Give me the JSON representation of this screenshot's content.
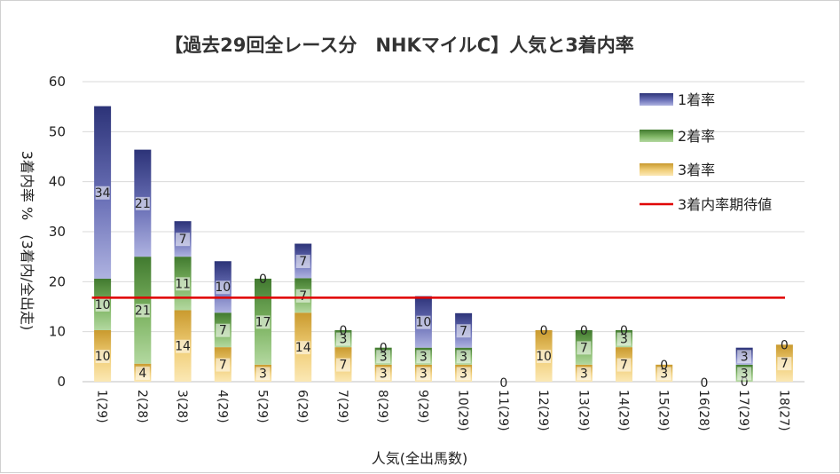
{
  "chart_data": {
    "type": "bar",
    "stacked": true,
    "title": "【過去29回全レース分　NHKマイルC】人気と3着内率",
    "xlabel": "人気(全出馬数)",
    "ylabel": "3着内率 %　(3着内/全出走)",
    "ylim": [
      0,
      60
    ],
    "yticks": [
      0,
      10,
      20,
      30,
      40,
      50,
      60
    ],
    "grid": true,
    "legend_position": "top-right",
    "categories": [
      "1(29)",
      "2(28)",
      "3(28)",
      "4(29)",
      "5(29)",
      "6(29)",
      "7(29)",
      "8(29)",
      "9(29)",
      "10(29)",
      "11(29)",
      "12(29)",
      "13(29)",
      "14(29)",
      "15(29)",
      "16(28)",
      "17(29)",
      "18(27)"
    ],
    "series": [
      {
        "name": "3着率",
        "color": "#e8b54a",
        "values": [
          10.3,
          3.6,
          14.3,
          6.9,
          3.4,
          13.8,
          6.9,
          3.4,
          3.4,
          3.4,
          0,
          10.3,
          3.4,
          6.9,
          3.4,
          0,
          0,
          7.4
        ],
        "labels": [
          "10",
          "4",
          "14",
          "7",
          "3",
          "14",
          "7",
          "3",
          "3",
          "3",
          "",
          "10",
          "3",
          "7",
          "3",
          "",
          "0",
          "7"
        ]
      },
      {
        "name": "2着率",
        "color": "#4e8a3a",
        "values": [
          10.3,
          21.4,
          10.7,
          6.9,
          17.2,
          6.9,
          3.4,
          3.4,
          3.4,
          3.4,
          0,
          0,
          6.9,
          3.4,
          0,
          0,
          3.4,
          0
        ],
        "labels": [
          "10",
          "21",
          "11",
          "7",
          "17",
          "7",
          "3",
          "3",
          "3",
          "3",
          "",
          "0",
          "7",
          "3",
          "",
          "",
          "3",
          "0"
        ]
      },
      {
        "name": "1着率",
        "color": "#2e3580",
        "values": [
          34.5,
          21.4,
          7.1,
          10.3,
          0,
          6.9,
          0,
          0,
          10.3,
          6.9,
          0,
          0,
          0,
          0,
          0,
          0,
          3.4,
          0
        ],
        "labels": [
          "34",
          "21",
          "7",
          "10",
          "0",
          "7",
          "0",
          "0",
          "10",
          "7",
          "0",
          "",
          "0",
          "0",
          "0",
          "0",
          "3",
          ""
        ]
      }
    ],
    "expected_line": {
      "name": "3着内率期待値",
      "value": 16.8,
      "color": "#e00000"
    }
  }
}
